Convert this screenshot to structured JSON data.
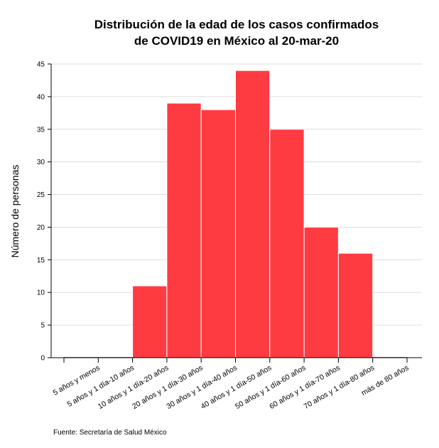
{
  "chart_data": {
    "type": "bar",
    "title": [
      "Distribución de la edad de los casos confirmados",
      "de COVID19 en México al 20-mar-20"
    ],
    "ylabel": "Número de personas",
    "xlabel": "",
    "categories": [
      "5 años y menos",
      "5 años y 1 día-10 años",
      "10 años y 1 día-20 años",
      "20 años y 1 día-30 años",
      "30 años y 1 día-40 años",
      "40 años y 1 día-50 años",
      "50 años y 1 día-60 años",
      "60 años y 1 día-70 años",
      "70 años y 1 día-80 años",
      "más de 80 años"
    ],
    "values": [
      0,
      0,
      11,
      39,
      38,
      44,
      35,
      20,
      16,
      0
    ],
    "ylim": [
      0,
      45
    ],
    "yticks": [
      0,
      5,
      10,
      15,
      20,
      25,
      30,
      35,
      40,
      45
    ],
    "grid": "horizontal",
    "bar_color": "#ff3b42",
    "source": "Fuente: Secretaría de Salud México"
  }
}
